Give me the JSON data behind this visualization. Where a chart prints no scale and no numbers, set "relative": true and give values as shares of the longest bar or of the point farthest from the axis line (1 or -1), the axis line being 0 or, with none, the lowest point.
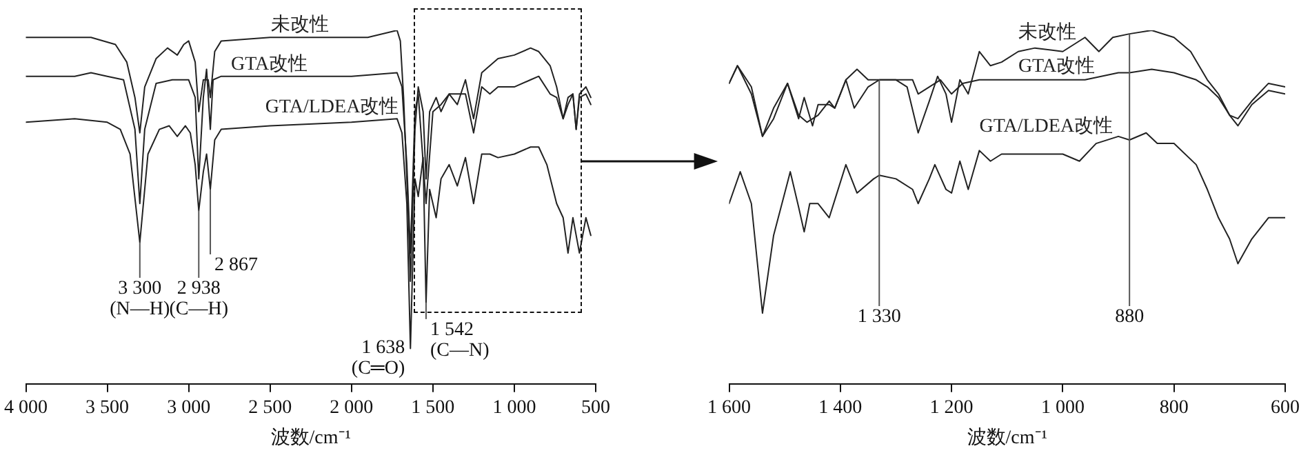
{
  "chart_data": [
    {
      "type": "line",
      "relative": true,
      "xlabel": "波数/cm⁻¹",
      "xlim": [
        4000,
        500
      ],
      "xticks": [
        {
          "value": 4000,
          "label": "4 000"
        },
        {
          "value": 3500,
          "label": "3 500"
        },
        {
          "value": 3000,
          "label": "3 000"
        },
        {
          "value": 2500,
          "label": "2 500"
        },
        {
          "value": 2000,
          "label": "2 000"
        },
        {
          "value": 1500,
          "label": "1 500"
        },
        {
          "value": 1000,
          "label": "1 000"
        },
        500
      ],
      "grid": false,
      "marker": "none",
      "line_style": "solid",
      "series": [
        {
          "name": "未改性",
          "color": "#222222",
          "x": [
            4000,
            3800,
            3600,
            3450,
            3380,
            3330,
            3300,
            3270,
            3200,
            3130,
            3070,
            3030,
            3000,
            2960,
            2938,
            2910,
            2880,
            2867,
            2840,
            2800,
            2500,
            2200,
            1900,
            1720,
            1700,
            1680,
            1650,
            1638,
            1610,
            1590,
            1560,
            1542,
            1520,
            1480,
            1450,
            1400,
            1350,
            1300,
            1250,
            1200,
            1150,
            1100,
            1000,
            900,
            850,
            780,
            740,
            700,
            670,
            640,
            620,
            600,
            560,
            530
          ],
          "values": [
            0.98,
            0.98,
            0.98,
            0.96,
            0.91,
            0.81,
            0.71,
            0.84,
            0.92,
            0.95,
            0.93,
            0.96,
            0.97,
            0.91,
            0.77,
            0.86,
            0.86,
            0.81,
            0.94,
            0.97,
            0.98,
            0.98,
            0.98,
            1.0,
            0.97,
            0.81,
            0.47,
            0.29,
            0.72,
            0.84,
            0.77,
            0.58,
            0.77,
            0.81,
            0.77,
            0.82,
            0.79,
            0.86,
            0.75,
            0.88,
            0.9,
            0.92,
            0.93,
            0.95,
            0.94,
            0.9,
            0.84,
            0.75,
            0.81,
            0.82,
            0.72,
            0.82,
            0.84,
            0.81
          ]
        },
        {
          "name": "GTA改性",
          "color": "#222222",
          "x": [
            4000,
            3700,
            3600,
            3500,
            3400,
            3330,
            3300,
            3270,
            3200,
            3100,
            3000,
            2960,
            2938,
            2910,
            2890,
            2867,
            2850,
            2800,
            2500,
            2000,
            1720,
            1690,
            1660,
            1638,
            1610,
            1590,
            1542,
            1500,
            1450,
            1400,
            1300,
            1250,
            1200,
            1150,
            1100,
            1000,
            900,
            850,
            780,
            740,
            700,
            670,
            640,
            620,
            600,
            560,
            530
          ],
          "values": [
            0.87,
            0.87,
            0.88,
            0.87,
            0.86,
            0.72,
            0.51,
            0.72,
            0.85,
            0.86,
            0.86,
            0.81,
            0.58,
            0.81,
            0.89,
            0.72,
            0.86,
            0.87,
            0.87,
            0.87,
            0.88,
            0.84,
            0.62,
            0.37,
            0.77,
            0.82,
            0.51,
            0.77,
            0.79,
            0.82,
            0.82,
            0.71,
            0.84,
            0.82,
            0.84,
            0.84,
            0.86,
            0.87,
            0.82,
            0.81,
            0.75,
            0.79,
            0.82,
            0.72,
            0.81,
            0.82,
            0.79
          ]
        },
        {
          "name": "GTA/LDEA改性",
          "color": "#222222",
          "x": [
            4000,
            3700,
            3500,
            3420,
            3360,
            3300,
            3250,
            3180,
            3120,
            3070,
            3020,
            2990,
            2960,
            2938,
            2910,
            2890,
            2867,
            2840,
            2800,
            2500,
            2000,
            1720,
            1690,
            1660,
            1638,
            1610,
            1590,
            1560,
            1542,
            1520,
            1480,
            1450,
            1400,
            1350,
            1300,
            1250,
            1200,
            1150,
            1100,
            1000,
            900,
            850,
            800,
            740,
            700,
            670,
            640,
            620,
            600,
            560,
            530
          ],
          "values": [
            0.74,
            0.75,
            0.74,
            0.72,
            0.65,
            0.4,
            0.65,
            0.72,
            0.73,
            0.7,
            0.73,
            0.71,
            0.62,
            0.49,
            0.6,
            0.65,
            0.55,
            0.69,
            0.72,
            0.73,
            0.74,
            0.75,
            0.71,
            0.51,
            0.1,
            0.58,
            0.53,
            0.64,
            0.23,
            0.55,
            0.47,
            0.58,
            0.62,
            0.56,
            0.64,
            0.51,
            0.65,
            0.65,
            0.64,
            0.65,
            0.67,
            0.67,
            0.62,
            0.51,
            0.47,
            0.37,
            0.47,
            0.42,
            0.37,
            0.47,
            0.42
          ]
        }
      ],
      "annotations": [
        {
          "text": "3 300\n(N—H)",
          "x": 3300,
          "y": 0.4
        },
        {
          "text": "2 938\n(C—H)",
          "x": 2938,
          "y": 0.49
        },
        {
          "text": "2 867",
          "x": 2867,
          "y": 0.55
        },
        {
          "text": "1 542\n(C—N)",
          "x": 1542,
          "y": 0.23
        },
        {
          "text": "1 638\n(C═O)",
          "x": 1638,
          "y": 0.1
        }
      ]
    },
    {
      "type": "line",
      "relative": true,
      "xlabel": "波数/cm⁻¹",
      "xlim": [
        1600,
        600
      ],
      "xticks": [
        {
          "value": 1600,
          "label": "1 600"
        },
        {
          "value": 1400,
          "label": "1 400"
        },
        {
          "value": 1200,
          "label": "1 200"
        },
        {
          "value": 1000,
          "label": "1 000"
        },
        800,
        600
      ],
      "grid": false,
      "marker": "none",
      "line_style": "solid",
      "series": [
        {
          "name": "未改性",
          "color": "#222222",
          "x": [
            1600,
            1585,
            1560,
            1540,
            1520,
            1495,
            1475,
            1465,
            1450,
            1440,
            1420,
            1410,
            1390,
            1370,
            1350,
            1330,
            1300,
            1280,
            1260,
            1240,
            1225,
            1210,
            1200,
            1185,
            1170,
            1150,
            1130,
            1110,
            1080,
            1050,
            1000,
            960,
            935,
            910,
            880,
            840,
            800,
            770,
            740,
            720,
            700,
            685,
            660,
            630,
            600
          ],
          "values": [
            0.85,
            0.9,
            0.84,
            0.7,
            0.78,
            0.85,
            0.75,
            0.81,
            0.73,
            0.79,
            0.79,
            0.78,
            0.86,
            0.89,
            0.86,
            0.86,
            0.86,
            0.84,
            0.71,
            0.8,
            0.87,
            0.82,
            0.74,
            0.86,
            0.82,
            0.94,
            0.9,
            0.91,
            0.94,
            0.95,
            0.94,
            0.98,
            0.94,
            0.98,
            0.99,
            1.0,
            0.98,
            0.94,
            0.86,
            0.82,
            0.76,
            0.75,
            0.8,
            0.85,
            0.84
          ]
        },
        {
          "name": "GTA改性",
          "color": "#222222",
          "x": [
            1600,
            1585,
            1560,
            1540,
            1520,
            1495,
            1475,
            1460,
            1440,
            1420,
            1410,
            1390,
            1375,
            1350,
            1330,
            1300,
            1270,
            1260,
            1240,
            1220,
            1200,
            1180,
            1150,
            1120,
            1080,
            1000,
            960,
            900,
            880,
            840,
            800,
            760,
            740,
            720,
            700,
            685,
            660,
            630,
            600
          ],
          "values": [
            0.85,
            0.9,
            0.82,
            0.7,
            0.75,
            0.85,
            0.76,
            0.74,
            0.76,
            0.8,
            0.78,
            0.86,
            0.78,
            0.84,
            0.86,
            0.86,
            0.86,
            0.82,
            0.84,
            0.86,
            0.82,
            0.85,
            0.86,
            0.86,
            0.86,
            0.86,
            0.86,
            0.88,
            0.88,
            0.89,
            0.88,
            0.86,
            0.84,
            0.81,
            0.76,
            0.73,
            0.79,
            0.83,
            0.82
          ]
        },
        {
          "name": "GTA/LDEA改性",
          "color": "#222222",
          "x": [
            1600,
            1580,
            1560,
            1540,
            1520,
            1500,
            1490,
            1475,
            1465,
            1455,
            1440,
            1420,
            1410,
            1390,
            1370,
            1340,
            1330,
            1300,
            1270,
            1260,
            1240,
            1230,
            1210,
            1200,
            1185,
            1170,
            1150,
            1130,
            1110,
            1050,
            1000,
            970,
            940,
            900,
            880,
            850,
            830,
            800,
            760,
            740,
            720,
            700,
            685,
            660,
            630,
            600
          ],
          "values": [
            0.51,
            0.6,
            0.51,
            0.2,
            0.42,
            0.54,
            0.6,
            0.5,
            0.43,
            0.51,
            0.51,
            0.47,
            0.52,
            0.62,
            0.54,
            0.58,
            0.59,
            0.58,
            0.55,
            0.51,
            0.58,
            0.62,
            0.55,
            0.54,
            0.63,
            0.55,
            0.66,
            0.63,
            0.65,
            0.65,
            0.65,
            0.63,
            0.68,
            0.7,
            0.69,
            0.71,
            0.68,
            0.68,
            0.62,
            0.55,
            0.47,
            0.41,
            0.34,
            0.41,
            0.47,
            0.47
          ]
        }
      ],
      "annotations": [
        {
          "text": "1 330",
          "x": 1330,
          "y": 0.86
        },
        {
          "text": "880",
          "x": 880,
          "y": 0.99
        }
      ]
    }
  ]
}
